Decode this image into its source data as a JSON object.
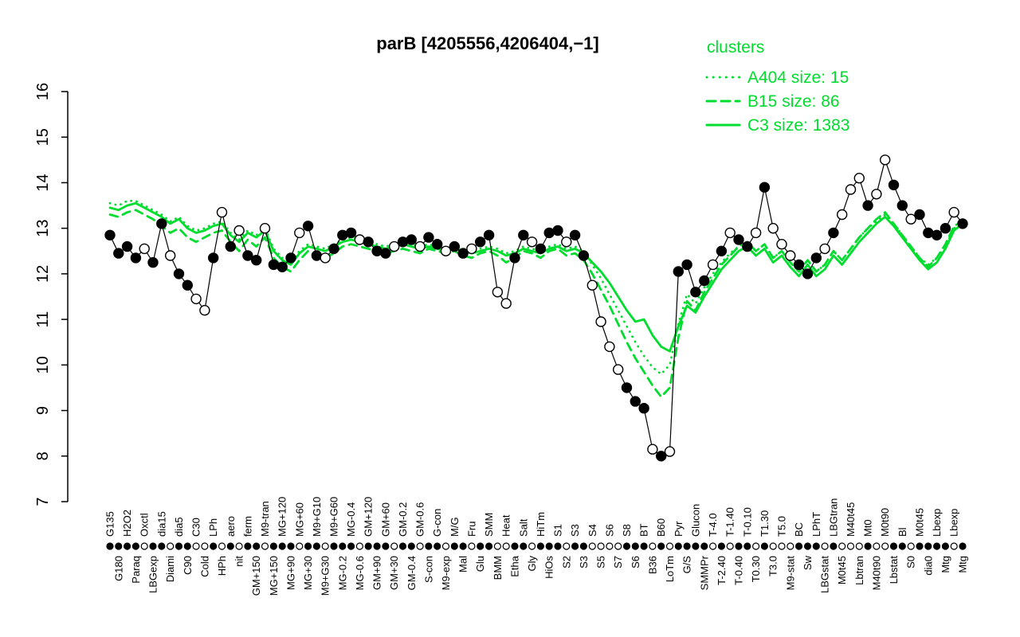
{
  "colors": {
    "series_green": "#00dd2e",
    "black": "#000000",
    "open_point_fill": "#ffffff"
  },
  "chart_data": {
    "type": "line",
    "title": "parB [4205556,4206404,−1]",
    "legend_title": "clusters",
    "xlabel": "",
    "ylabel": "",
    "ylim": [
      7,
      16
    ],
    "yticks": [
      7,
      8,
      9,
      10,
      11,
      12,
      13,
      14,
      15,
      16
    ],
    "legend_position": "top-right",
    "grid": false,
    "categories": [
      "G135",
      "G180",
      "H2O2",
      "Paraq",
      "Oxctl",
      "LBGexp",
      "dia15",
      "Diami",
      "dia5",
      "C90",
      "C30",
      "Cold",
      "LPh",
      "HPh",
      "aero",
      "nit",
      "ferm",
      "GM+150",
      "M9-tran",
      "MG+150",
      "MG+120",
      "MG+90",
      "MG+60",
      "MG+30",
      "M9+G10",
      "M9+G30",
      "M9+G60",
      "MG-0.2",
      "MG-0.4",
      "MG-0.6",
      "GM+120",
      "GM+90",
      "GM+60",
      "GM+30",
      "GM-0.2",
      "GM-0.4",
      "GM-0.6",
      "S-con",
      "G-con",
      "M9-exp",
      "M/G",
      "Mal",
      "Fru",
      "Glu",
      "SMM",
      "BMM",
      "Heat",
      "Etha",
      "Salt",
      "Gly",
      "HiTm",
      "HiOs",
      "S1",
      "S2",
      "S3",
      "S3",
      "S4",
      "S5",
      "S6",
      "S7",
      "S8",
      "S6",
      "BT",
      "B36",
      "B60",
      "LoTm",
      "Pyr",
      "G/S",
      "Glucon",
      "SMMPr",
      "T-4.0",
      "T-2.40",
      "T-1.40",
      "T-0.40",
      "T-0.10",
      "T0.30",
      "T1.30",
      "T3.0",
      "T5.0",
      "M9-stat",
      "BC",
      "Sw",
      "LPhT",
      "LBGstat",
      "LBGtran",
      "M0t45",
      "M40t45",
      "Lbtran",
      "Mt0",
      "M40t90",
      "M0t90",
      "Lbstat",
      "Bl",
      "S0",
      "M0t45",
      "dia0",
      "Lbexp",
      "Mtg",
      "Lbexp",
      "Mtg"
    ],
    "tick_symbols": [
      "f",
      "f",
      "f",
      "f",
      "o",
      "f",
      "f",
      "o",
      "f",
      "f",
      "o",
      "o",
      "f",
      "o",
      "f",
      "o",
      "f",
      "f",
      "o",
      "f",
      "f",
      "f",
      "o",
      "f",
      "f",
      "o",
      "f",
      "f",
      "f",
      "o",
      "f",
      "f",
      "f",
      "o",
      "f",
      "f",
      "o",
      "f",
      "f",
      "o",
      "f",
      "f",
      "o",
      "f",
      "f",
      "o",
      "o",
      "f",
      "f",
      "o",
      "f",
      "f",
      "f",
      "o",
      "f",
      "f",
      "o",
      "o",
      "o",
      "o",
      "f",
      "f",
      "f",
      "o",
      "f",
      "o",
      "f",
      "f",
      "f",
      "f",
      "o",
      "f",
      "o",
      "f",
      "f",
      "o",
      "f",
      "o",
      "o",
      "o",
      "f",
      "f",
      "f",
      "o",
      "f",
      "o",
      "o",
      "o",
      "f",
      "o",
      "o",
      "f",
      "f",
      "o",
      "f",
      "f",
      "f",
      "f",
      "o",
      "f"
    ],
    "series": [
      {
        "name": "probes",
        "color": "#000000",
        "style": "points",
        "pch": [
          "f",
          "f",
          "f",
          "f",
          "o",
          "f",
          "f",
          "o",
          "f",
          "f",
          "o",
          "o",
          "f",
          "o",
          "f",
          "o",
          "f",
          "f",
          "o",
          "f",
          "f",
          "f",
          "o",
          "f",
          "f",
          "o",
          "f",
          "f",
          "f",
          "o",
          "f",
          "f",
          "f",
          "o",
          "f",
          "f",
          "o",
          "f",
          "f",
          "o",
          "f",
          "f",
          "o",
          "f",
          "f",
          "o",
          "o",
          "f",
          "f",
          "o",
          "f",
          "f",
          "f",
          "o",
          "f",
          "f",
          "o",
          "o",
          "o",
          "o",
          "f",
          "f",
          "f",
          "o",
          "f",
          "o",
          "f",
          "f",
          "f",
          "f",
          "o",
          "f",
          "o",
          "f",
          "f",
          "o",
          "f",
          "o",
          "o",
          "o",
          "f",
          "f",
          "f",
          "o",
          "f",
          "o",
          "o",
          "o",
          "f",
          "o",
          "o",
          "f",
          "f",
          "o",
          "f",
          "f",
          "f",
          "f",
          "o",
          "f"
        ],
        "values": [
          12.85,
          12.45,
          12.6,
          12.35,
          12.55,
          12.25,
          13.1,
          12.4,
          12.0,
          11.75,
          11.45,
          11.2,
          12.35,
          13.35,
          12.6,
          12.95,
          12.4,
          12.3,
          13.0,
          12.2,
          12.15,
          12.35,
          12.9,
          13.05,
          12.4,
          12.35,
          12.55,
          12.85,
          12.9,
          12.75,
          12.7,
          12.5,
          12.45,
          12.6,
          12.7,
          12.75,
          12.6,
          12.8,
          12.65,
          12.5,
          12.6,
          12.45,
          12.55,
          12.7,
          12.85,
          11.6,
          11.35,
          12.35,
          12.85,
          12.7,
          12.55,
          12.9,
          12.95,
          12.7,
          12.85,
          12.4,
          11.75,
          10.95,
          10.4,
          9.9,
          9.5,
          9.2,
          9.05,
          8.15,
          8.0,
          8.1,
          12.05,
          12.2,
          11.6,
          11.85,
          12.2,
          12.5,
          12.9,
          12.75,
          12.6,
          12.9,
          13.9,
          13.0,
          12.65,
          12.4,
          12.2,
          12.0,
          12.35,
          12.55,
          12.9,
          13.3,
          13.85,
          14.1,
          13.5,
          13.75,
          14.5,
          13.95,
          13.5,
          13.2,
          13.3,
          12.9,
          12.85,
          13.0,
          13.35,
          13.1
        ]
      },
      {
        "name": "A404 size: 15",
        "color": "#00dd2e",
        "style": "dotted",
        "values": [
          13.55,
          13.5,
          13.6,
          13.6,
          13.5,
          13.4,
          13.3,
          13.15,
          13.25,
          13.05,
          12.95,
          13.0,
          13.1,
          13.15,
          12.9,
          12.75,
          12.95,
          12.85,
          13.0,
          12.55,
          12.35,
          12.25,
          12.5,
          12.65,
          12.6,
          12.55,
          12.65,
          12.75,
          12.8,
          12.75,
          12.7,
          12.65,
          12.6,
          12.65,
          12.7,
          12.65,
          12.6,
          12.65,
          12.6,
          12.55,
          12.6,
          12.55,
          12.5,
          12.55,
          12.6,
          12.55,
          12.45,
          12.5,
          12.6,
          12.55,
          12.5,
          12.6,
          12.65,
          12.55,
          12.6,
          12.5,
          12.2,
          11.9,
          11.55,
          11.2,
          10.85,
          10.5,
          10.2,
          9.95,
          9.8,
          10.0,
          10.9,
          11.55,
          11.35,
          11.7,
          12.0,
          12.25,
          12.45,
          12.6,
          12.7,
          12.5,
          12.65,
          12.35,
          12.5,
          12.25,
          12.05,
          12.3,
          12.05,
          12.2,
          12.5,
          12.3,
          12.55,
          12.8,
          13.0,
          13.15,
          13.3,
          13.1,
          12.85,
          12.6,
          12.35,
          12.2,
          12.35,
          12.6,
          13.0,
          13.1
        ]
      },
      {
        "name": "B15 size: 86",
        "color": "#00dd2e",
        "style": "dashed",
        "values": [
          13.3,
          13.25,
          13.35,
          13.4,
          13.3,
          13.2,
          13.05,
          12.9,
          13.0,
          12.8,
          12.7,
          12.8,
          12.9,
          12.95,
          12.7,
          12.5,
          12.75,
          12.6,
          12.8,
          12.35,
          12.15,
          12.05,
          12.3,
          12.5,
          12.4,
          12.35,
          12.45,
          12.6,
          12.65,
          12.6,
          12.55,
          12.5,
          12.45,
          12.5,
          12.55,
          12.5,
          12.45,
          12.55,
          12.5,
          12.45,
          12.5,
          12.4,
          12.35,
          12.45,
          12.5,
          12.4,
          12.25,
          12.35,
          12.5,
          12.45,
          12.35,
          12.5,
          12.55,
          12.4,
          12.45,
          12.3,
          12.0,
          11.65,
          11.3,
          10.9,
          10.5,
          10.15,
          9.85,
          9.55,
          9.3,
          9.5,
          10.6,
          11.4,
          11.2,
          11.6,
          11.9,
          12.2,
          12.4,
          12.6,
          12.7,
          12.5,
          12.65,
          12.35,
          12.5,
          12.25,
          12.05,
          12.3,
          12.05,
          12.2,
          12.5,
          12.3,
          12.55,
          12.8,
          13.0,
          13.2,
          13.35,
          13.1,
          12.85,
          12.6,
          12.35,
          12.15,
          12.35,
          12.65,
          13.05,
          13.15
        ]
      },
      {
        "name": "C3 size: 1383",
        "color": "#00dd2e",
        "style": "solid",
        "values": [
          13.45,
          13.4,
          13.5,
          13.55,
          13.45,
          13.35,
          13.25,
          13.1,
          13.2,
          13.0,
          12.9,
          12.95,
          13.05,
          13.1,
          12.85,
          12.7,
          12.9,
          12.8,
          12.95,
          12.5,
          12.3,
          12.2,
          12.45,
          12.6,
          12.55,
          12.5,
          12.6,
          12.7,
          12.75,
          12.7,
          12.65,
          12.6,
          12.55,
          12.6,
          12.65,
          12.6,
          12.55,
          12.6,
          12.55,
          12.5,
          12.55,
          12.5,
          12.45,
          12.5,
          12.55,
          12.5,
          12.4,
          12.45,
          12.55,
          12.5,
          12.45,
          12.55,
          12.6,
          12.5,
          12.55,
          12.45,
          12.25,
          12.05,
          11.8,
          11.5,
          11.2,
          10.95,
          11.0,
          10.65,
          10.4,
          10.3,
          10.85,
          11.3,
          11.15,
          11.5,
          11.8,
          12.1,
          12.3,
          12.5,
          12.6,
          12.4,
          12.55,
          12.25,
          12.4,
          12.15,
          11.95,
          12.2,
          11.95,
          12.1,
          12.4,
          12.2,
          12.45,
          12.7,
          12.9,
          13.1,
          13.25,
          13.05,
          12.8,
          12.55,
          12.3,
          12.1,
          12.25,
          12.55,
          12.95,
          13.1
        ]
      }
    ]
  }
}
